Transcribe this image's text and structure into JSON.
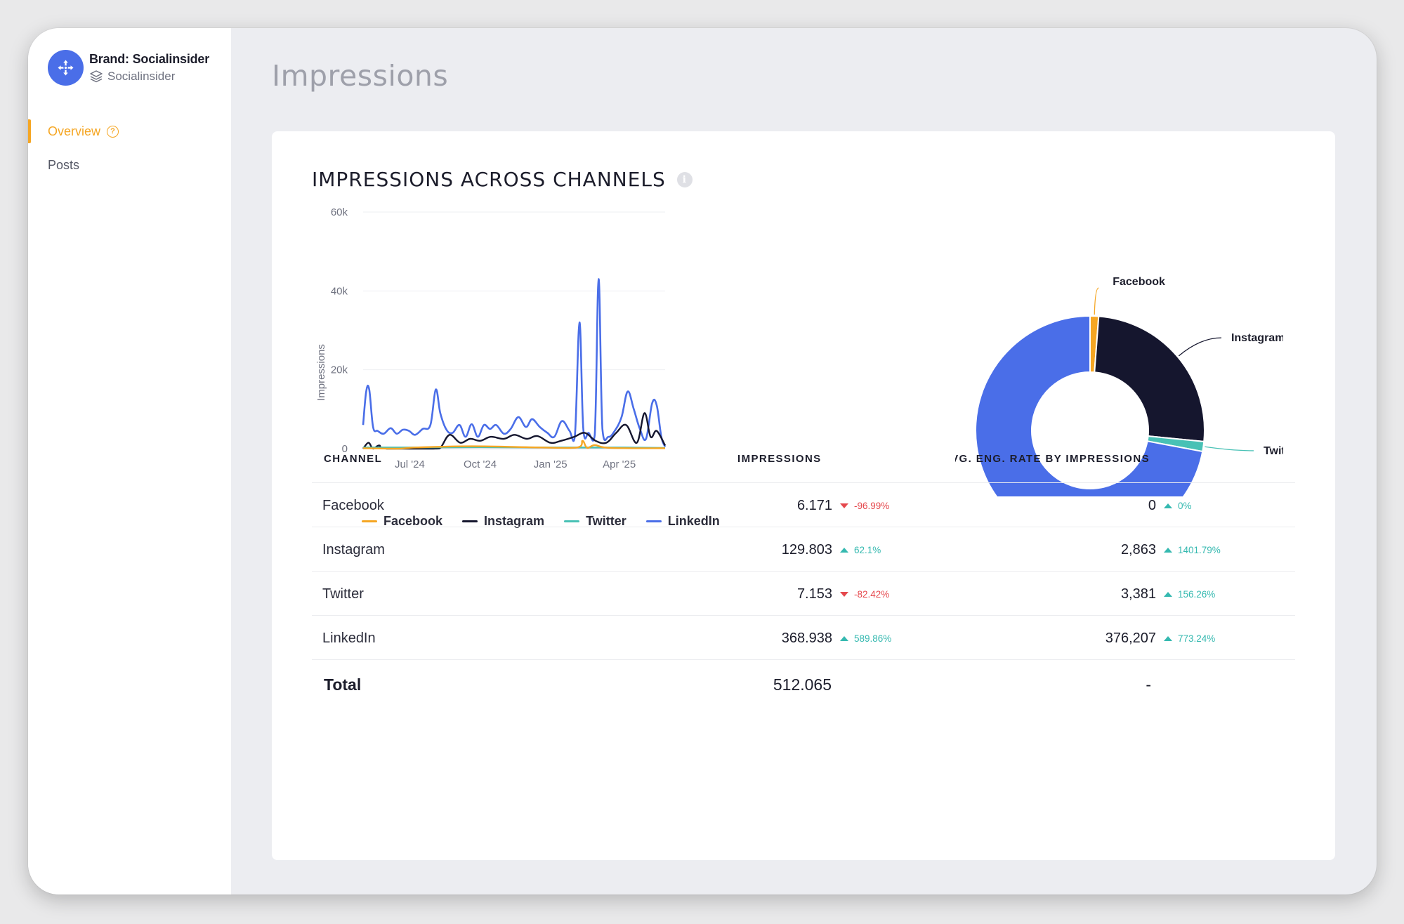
{
  "sidebar": {
    "brand_title": "Brand: Socialinsider",
    "brand_sub": "Socialinsider",
    "nav": [
      {
        "label": "Overview",
        "active": true
      },
      {
        "label": "Posts",
        "active": false
      }
    ]
  },
  "page_title": "Impressions",
  "card": {
    "title": "IMPRESSIONS ACROSS CHANNELS"
  },
  "colors": {
    "facebook": "#f5a623",
    "instagram": "#15162e",
    "twitter": "#48c1b5",
    "linkedin": "#4a6ee8"
  },
  "chart_data": [
    {
      "type": "line",
      "ylabel": "Impressions",
      "ylim": [
        0,
        60000
      ],
      "yticks": [
        "0",
        "20k",
        "40k",
        "60k"
      ],
      "xticks": [
        "Jul '24",
        "Oct '24",
        "Jan '25",
        "Apr '25"
      ],
      "xtick_positions": [
        "2024-07-01",
        "2024-10-01",
        "2025-01-01",
        "2025-04-01"
      ],
      "x_range": [
        "2024-05-01",
        "2025-05-31"
      ],
      "legend": [
        "Facebook",
        "Instagram",
        "Twitter",
        "LinkedIn"
      ],
      "series": [
        {
          "name": "LinkedIn",
          "points": [
            [
              "2024-05-01",
              6000
            ],
            [
              "2024-05-05",
              14500
            ],
            [
              "2024-05-09",
              15000
            ],
            [
              "2024-05-14",
              5500
            ],
            [
              "2024-05-20",
              4500
            ],
            [
              "2024-05-28",
              3800
            ],
            [
              "2024-06-06",
              5200
            ],
            [
              "2024-06-14",
              3800
            ],
            [
              "2024-06-22",
              4800
            ],
            [
              "2024-06-30",
              4500
            ],
            [
              "2024-07-08",
              3500
            ],
            [
              "2024-07-18",
              5000
            ],
            [
              "2024-07-28",
              6000
            ],
            [
              "2024-08-04",
              15000
            ],
            [
              "2024-08-10",
              9000
            ],
            [
              "2024-08-18",
              4800
            ],
            [
              "2024-08-26",
              4000
            ],
            [
              "2024-09-04",
              6000
            ],
            [
              "2024-09-12",
              3000
            ],
            [
              "2024-09-20",
              6200
            ],
            [
              "2024-09-28",
              3000
            ],
            [
              "2024-10-06",
              6000
            ],
            [
              "2024-10-14",
              5000
            ],
            [
              "2024-10-22",
              6000
            ],
            [
              "2024-11-01",
              3800
            ],
            [
              "2024-11-10",
              5000
            ],
            [
              "2024-11-20",
              8000
            ],
            [
              "2024-11-30",
              5500
            ],
            [
              "2024-12-08",
              7500
            ],
            [
              "2024-12-18",
              5500
            ],
            [
              "2024-12-28",
              4000
            ],
            [
              "2025-01-06",
              3000
            ],
            [
              "2025-01-16",
              7000
            ],
            [
              "2025-01-26",
              4500
            ],
            [
              "2025-02-02",
              3200
            ],
            [
              "2025-02-08",
              32000
            ],
            [
              "2025-02-13",
              5000
            ],
            [
              "2025-02-20",
              4000
            ],
            [
              "2025-02-28",
              3500
            ],
            [
              "2025-03-05",
              43000
            ],
            [
              "2025-03-10",
              5000
            ],
            [
              "2025-03-18",
              3000
            ],
            [
              "2025-03-26",
              4500
            ],
            [
              "2025-04-04",
              8000
            ],
            [
              "2025-04-12",
              14500
            ],
            [
              "2025-04-20",
              10000
            ],
            [
              "2025-04-28",
              5000
            ],
            [
              "2025-05-06",
              2500
            ],
            [
              "2025-05-14",
              11500
            ],
            [
              "2025-05-20",
              11000
            ],
            [
              "2025-05-26",
              3000
            ],
            [
              "2025-05-31",
              500
            ]
          ]
        },
        {
          "name": "Instagram",
          "points": [
            [
              "2024-05-01",
              0
            ],
            [
              "2024-05-08",
              1500
            ],
            [
              "2024-05-14",
              0
            ],
            [
              "2024-05-22",
              800
            ],
            [
              "2024-06-01",
              0
            ],
            [
              "2024-08-01",
              0
            ],
            [
              "2024-08-10",
              200
            ],
            [
              "2024-08-22",
              3500
            ],
            [
              "2024-09-05",
              1500
            ],
            [
              "2024-09-18",
              2500
            ],
            [
              "2024-10-01",
              2000
            ],
            [
              "2024-10-15",
              3000
            ],
            [
              "2024-11-01",
              2500
            ],
            [
              "2024-11-15",
              3500
            ],
            [
              "2024-12-01",
              2500
            ],
            [
              "2024-12-15",
              3200
            ],
            [
              "2025-01-01",
              1500
            ],
            [
              "2025-01-15",
              2000
            ],
            [
              "2025-02-01",
              3000
            ],
            [
              "2025-02-15",
              4000
            ],
            [
              "2025-03-01",
              2000
            ],
            [
              "2025-03-15",
              1500
            ],
            [
              "2025-03-28",
              4000
            ],
            [
              "2025-04-10",
              6000
            ],
            [
              "2025-04-24",
              1500
            ],
            [
              "2025-05-04",
              9000
            ],
            [
              "2025-05-12",
              3000
            ],
            [
              "2025-05-20",
              4500
            ],
            [
              "2025-05-31",
              800
            ]
          ]
        },
        {
          "name": "Twitter",
          "points": [
            [
              "2024-05-01",
              300
            ],
            [
              "2024-07-01",
              300
            ],
            [
              "2024-10-01",
              400
            ],
            [
              "2025-01-01",
              300
            ],
            [
              "2025-04-01",
              300
            ],
            [
              "2025-05-31",
              200
            ]
          ]
        },
        {
          "name": "Facebook",
          "points": [
            [
              "2024-05-01",
              100
            ],
            [
              "2024-06-15",
              0
            ],
            [
              "2024-07-10",
              300
            ],
            [
              "2024-09-20",
              600
            ],
            [
              "2024-12-20",
              300
            ],
            [
              "2025-02-05",
              300
            ],
            [
              "2025-02-12",
              2000
            ],
            [
              "2025-02-18",
              200
            ],
            [
              "2025-02-28",
              900
            ],
            [
              "2025-03-20",
              200
            ],
            [
              "2025-05-31",
              100
            ]
          ]
        }
      ]
    },
    {
      "type": "pie",
      "labels": [
        "Facebook",
        "Instagram",
        "Twitter",
        "LinkedIn"
      ],
      "values": [
        6171,
        129803,
        7153,
        368938
      ]
    }
  ],
  "table": {
    "headers": [
      "CHANNEL",
      "IMPRESSIONS",
      "AVG. ENG. RATE BY IMPRESSIONS"
    ],
    "rows": [
      {
        "channel": "Facebook",
        "impressions": "6.171",
        "imp_change": "-96.99%",
        "imp_dir": "down",
        "eng": "0",
        "eng_change": "0%",
        "eng_dir": "up"
      },
      {
        "channel": "Instagram",
        "impressions": "129.803",
        "imp_change": "62.1%",
        "imp_dir": "up",
        "eng": "2,863",
        "eng_change": "1401.79%",
        "eng_dir": "up"
      },
      {
        "channel": "Twitter",
        "impressions": "7.153",
        "imp_change": "-82.42%",
        "imp_dir": "down",
        "eng": "3,381",
        "eng_change": "156.26%",
        "eng_dir": "up"
      },
      {
        "channel": "LinkedIn",
        "impressions": "368.938",
        "imp_change": "589.86%",
        "imp_dir": "up",
        "eng": "376,207",
        "eng_change": "773.24%",
        "eng_dir": "up"
      }
    ],
    "total": {
      "label": "Total",
      "impressions": "512.065",
      "eng": "-"
    }
  }
}
